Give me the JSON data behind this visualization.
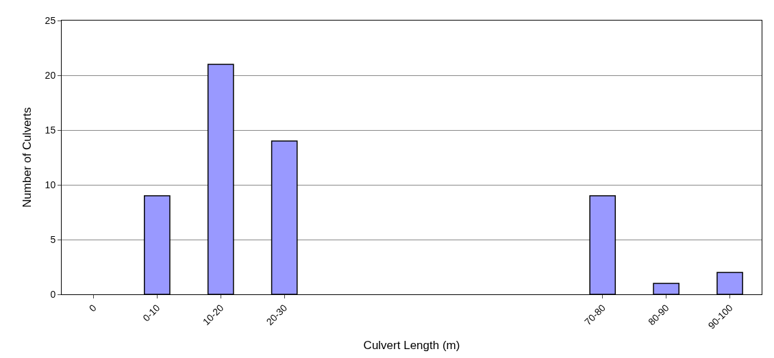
{
  "chart_data": {
    "type": "bar",
    "xlabel": "Culvert Length (m)",
    "ylabel": "Number of Culverts",
    "categories": [
      "0",
      "0-10",
      "10-20",
      "20-30",
      null,
      null,
      null,
      null,
      "70-80",
      "80-90",
      "90-100"
    ],
    "values": [
      null,
      9,
      21,
      14,
      null,
      null,
      null,
      null,
      9,
      1,
      2
    ],
    "color": "#9999ff",
    "ylim": [
      0,
      25
    ],
    "yticks": [
      0,
      5,
      10,
      15,
      20,
      25
    ],
    "grid": "y"
  }
}
